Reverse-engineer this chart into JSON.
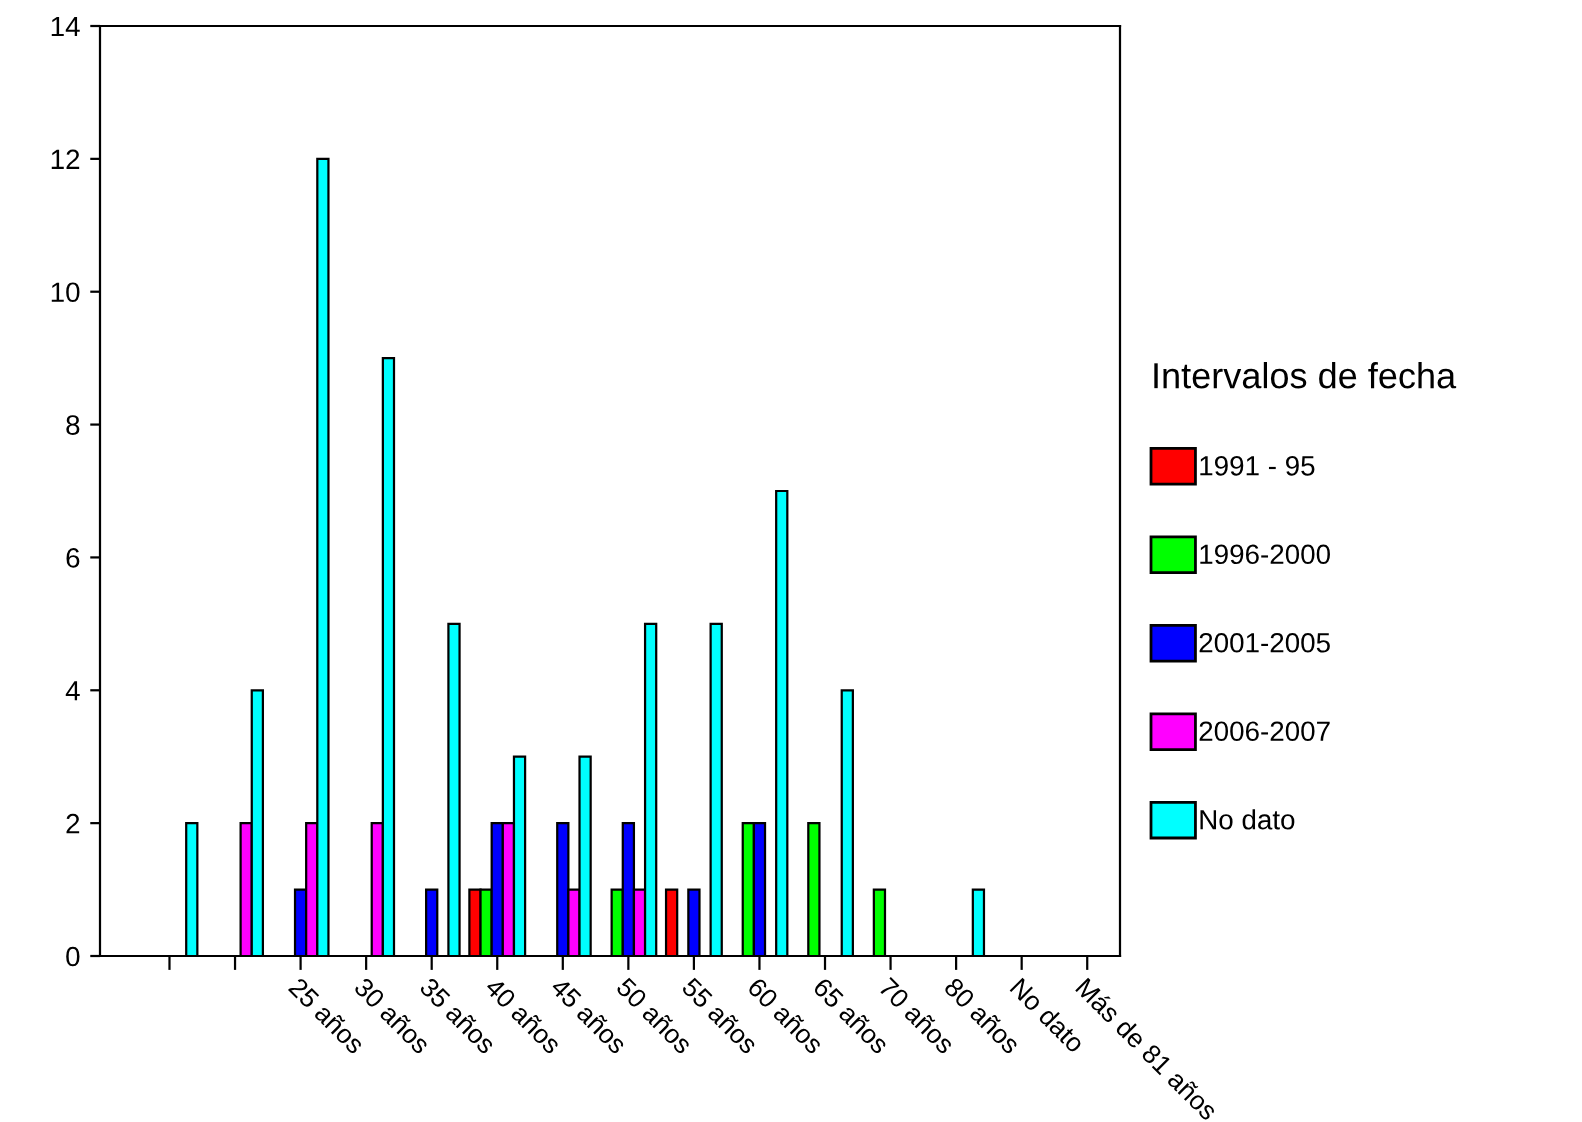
{
  "chart_data": {
    "type": "bar",
    "categories": [
      null,
      null,
      "25 años",
      "30 años",
      "35 años",
      "40 años",
      "45 años",
      "50 años",
      "55 años",
      "60 años",
      "65 años",
      "70 años",
      "80 años",
      "No dato",
      "Más de 81 años"
    ],
    "series": [
      {
        "name": "1991 - 95",
        "color": "#ff0000",
        "values": [
          null,
          null,
          null,
          null,
          null,
          1,
          null,
          null,
          1,
          null,
          null,
          null,
          null,
          null,
          null
        ]
      },
      {
        "name": "1996-2000",
        "color": "#00ff00",
        "values": [
          null,
          null,
          null,
          null,
          null,
          1,
          null,
          1,
          null,
          2,
          2,
          1,
          null,
          null,
          null
        ]
      },
      {
        "name": "2001-2005",
        "color": "#0000ff",
        "values": [
          null,
          null,
          1,
          null,
          1,
          2,
          2,
          2,
          1,
          2,
          null,
          null,
          null,
          null,
          null
        ]
      },
      {
        "name": "2006-2007",
        "color": "#ff00ff",
        "values": [
          null,
          2,
          2,
          2,
          null,
          2,
          1,
          1,
          null,
          null,
          null,
          null,
          null,
          null,
          null
        ]
      },
      {
        "name": "No dato",
        "color": "#00ffff",
        "values": [
          2,
          4,
          12,
          9,
          5,
          3,
          3,
          5,
          5,
          7,
          4,
          null,
          1,
          null,
          null
        ]
      }
    ],
    "legend_title": "Intervalos de fecha",
    "legend": "right",
    "ylim": [
      0,
      14
    ],
    "yticks": [
      0,
      2,
      4,
      6,
      8,
      10,
      12,
      14
    ],
    "grid": false
  }
}
